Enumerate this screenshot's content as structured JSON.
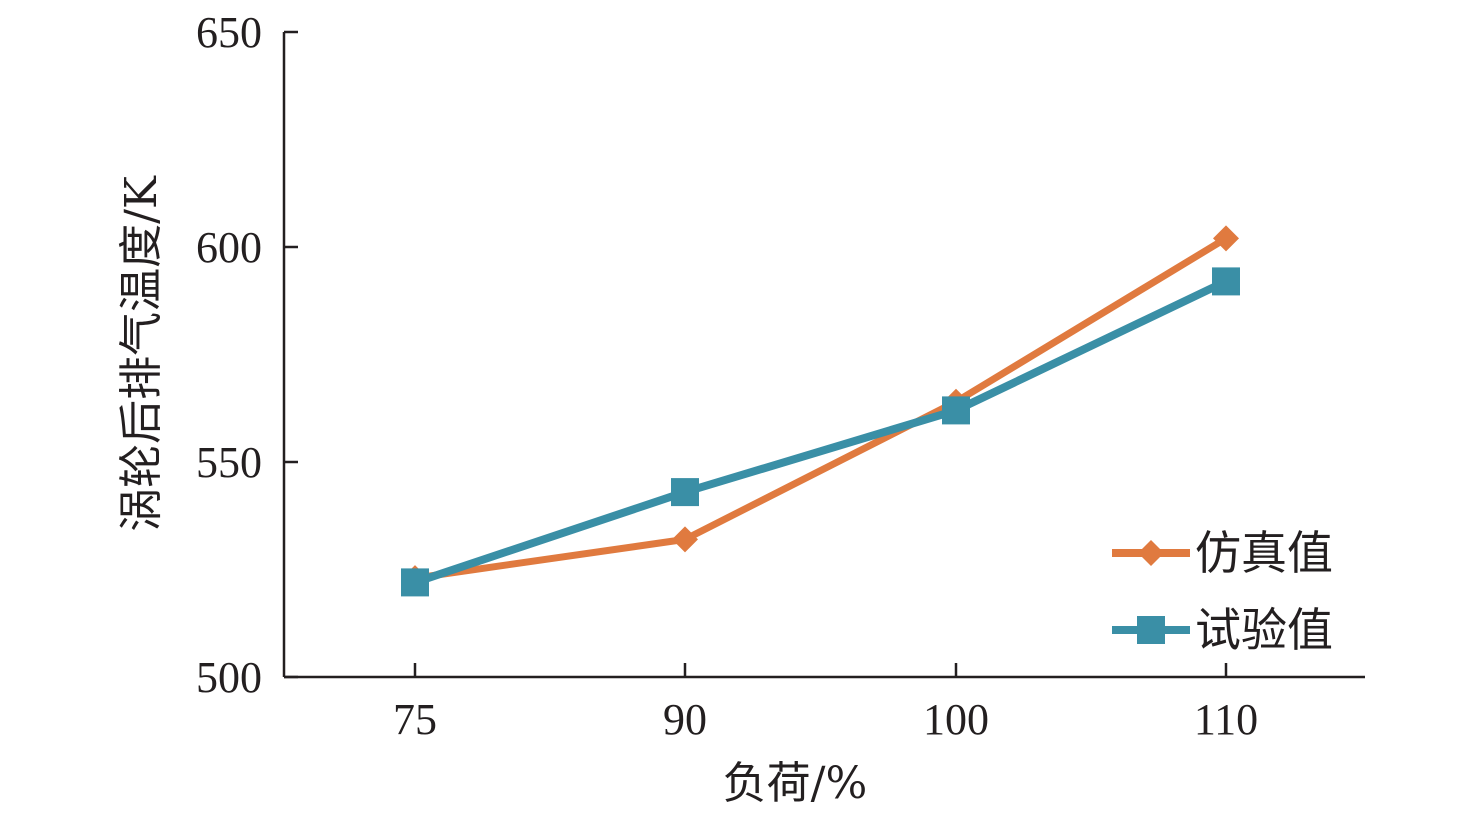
{
  "chart_data": {
    "type": "line",
    "categories": [
      "75",
      "90",
      "100",
      "110"
    ],
    "xlabel": "负荷/%",
    "ylabel": "涡轮后排气温度/K",
    "ylim": [
      500,
      650
    ],
    "yticks": [
      "500",
      "550",
      "600",
      "650"
    ],
    "grid": false,
    "legend_position": "bottom-right",
    "series": [
      {
        "name": "仿真值",
        "values": [
          523,
          532,
          564,
          602
        ],
        "color": "#e07a3f",
        "marker": "diamond"
      },
      {
        "name": "试验值",
        "values": [
          522,
          543,
          562,
          592
        ],
        "color": "#3a8fa6",
        "marker": "square"
      }
    ]
  }
}
